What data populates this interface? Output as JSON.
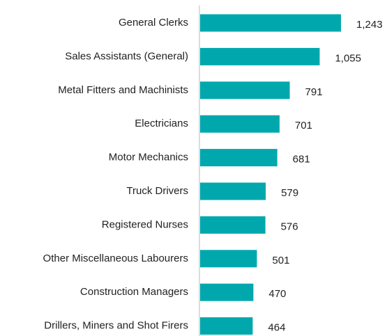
{
  "chart_data": {
    "type": "bar",
    "orientation": "horizontal",
    "categories": [
      "General Clerks",
      "Sales Assistants (General)",
      "Metal Fitters and Machinists",
      "Electricians",
      "Motor Mechanics",
      "Truck Drivers",
      "Registered Nurses",
      "Other Miscellaneous Labourers",
      "Construction Managers",
      "Drillers, Miners and Shot Firers"
    ],
    "values": [
      1243,
      1055,
      791,
      701,
      681,
      579,
      576,
      501,
      470,
      464
    ],
    "value_labels": [
      "1,243",
      "1,055",
      "791",
      "701",
      "681",
      "579",
      "576",
      "501",
      "470",
      "464"
    ],
    "color": "#00a8ad"
  }
}
